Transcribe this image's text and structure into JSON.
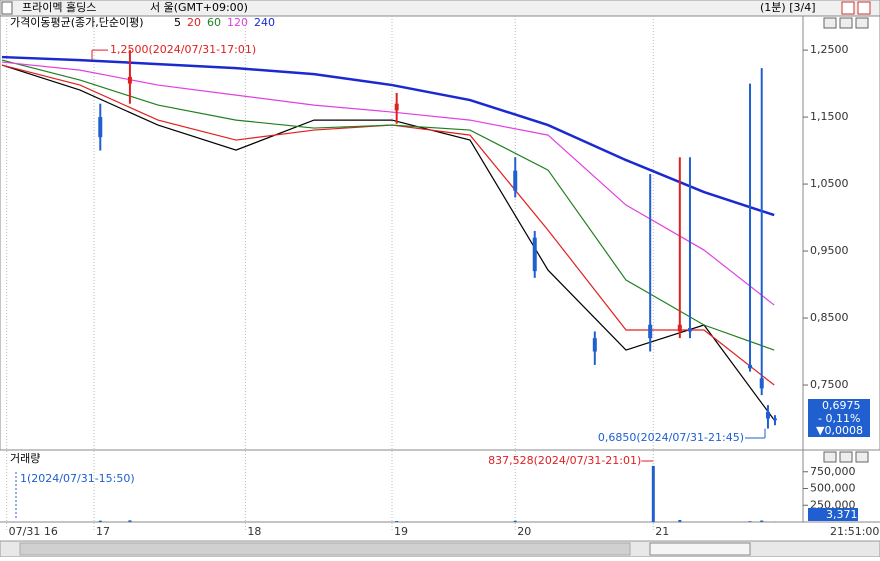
{
  "header": {
    "name": "프라이멕 홀딩스",
    "market": "서 울(GMT+09:00)",
    "interval": "(1분) [3/4]"
  },
  "chart_data": {
    "type": "candlestick",
    "indicator": "가격이동평균(종가,단순이평)",
    "xlim": [
      0,
      100
    ],
    "xticks": [
      {
        "value": 0.6,
        "label": "07/31 16"
      },
      {
        "value": 11.8,
        "label": "17"
      },
      {
        "value": 31.2,
        "label": "18"
      },
      {
        "value": 50,
        "label": "19"
      },
      {
        "value": 65.8,
        "label": "20"
      },
      {
        "value": 83.5,
        "label": "21"
      }
    ],
    "end_time": "21:51:00",
    "ylim": [
      0.653,
      1.28
    ],
    "yticks": [
      {
        "value": 1.25,
        "label": "1,2500"
      },
      {
        "value": 1.15,
        "label": "1,1500"
      },
      {
        "value": 1.05,
        "label": "1,0500"
      },
      {
        "value": 0.95,
        "label": "0,9500"
      },
      {
        "value": 0.85,
        "label": "0,8500"
      },
      {
        "value": 0.75,
        "label": "0,7500"
      }
    ],
    "up_color": "#e02020",
    "down_color": "#1f5fd0",
    "candles": {
      "x": [
        12.6,
        16.4,
        50.6,
        65.8,
        68.3,
        76,
        83.1,
        86.9,
        88.2,
        95.9,
        97.4,
        98.2,
        99.1
      ],
      "open": [
        1.15,
        1.2,
        1.16,
        1.07,
        0.97,
        0.82,
        0.84,
        0.83,
        0.835,
        0.78,
        0.76,
        0.71,
        0.7
      ],
      "high": [
        1.17,
        1.25,
        1.186,
        1.09,
        0.98,
        0.83,
        1.065,
        1.09,
        1.09,
        1.2,
        1.223,
        0.72,
        0.705
      ],
      "low": [
        1.1,
        1.17,
        1.14,
        1.03,
        0.91,
        0.78,
        0.8,
        0.82,
        0.82,
        0.77,
        0.735,
        0.685,
        0.69
      ],
      "close": [
        1.12,
        1.21,
        1.17,
        1.04,
        0.92,
        0.8,
        0.82,
        0.84,
        0.83,
        0.775,
        0.745,
        0.7,
        0.6975
      ]
    },
    "ma_x": [
      0,
      10,
      20,
      30,
      40,
      50,
      60,
      70,
      80,
      90,
      99
    ],
    "series": [
      {
        "name": "5",
        "color": "#000000",
        "values": [
          1.2276,
          1.1903,
          1.1381,
          1.1007,
          1.1455,
          1.1455,
          1.1157,
          0.9216,
          0.8022,
          0.8396,
          0.6978
        ]
      },
      {
        "name": "20",
        "color": "#e02020",
        "values": [
          1.2276,
          1.1978,
          1.1455,
          1.1157,
          1.1306,
          1.1381,
          1.1231,
          0.9813,
          0.8321,
          0.8321,
          0.75
        ]
      },
      {
        "name": "60",
        "color": "#208020",
        "values": [
          1.2351,
          1.2052,
          1.1679,
          1.1455,
          1.1336,
          1.1381,
          1.1306,
          1.0709,
          0.9067,
          0.8396,
          0.8022
        ]
      },
      {
        "name": "120",
        "color": "#e040e0",
        "values": [
          1.2321,
          1.2201,
          1.1978,
          1.1828,
          1.1679,
          1.1575,
          1.1455,
          1.1231,
          1.0187,
          0.9515,
          0.8694
        ]
      },
      {
        "name": "240",
        "color": "#1a2ad0",
        "values": [
          1.2396,
          1.2351,
          1.2291,
          1.2231,
          1.2142,
          1.1978,
          1.1754,
          1.1381,
          1.0858,
          1.0381,
          1.0037
        ]
      }
    ],
    "high_note": "1,2500(2024/07/31-17:01)",
    "low_note": "0,6850(2024/07/31-21:45)",
    "last_price": "0,6975",
    "change_pct": "- 0,11%",
    "change": "▼0,0008",
    "volume": {
      "title": "거래량",
      "ylim": [
        0,
        1000000
      ],
      "yticks": [
        {
          "value": 750000,
          "label": "750,000"
        },
        {
          "value": 500000,
          "label": "500,000"
        },
        {
          "value": 250000,
          "label": "250,000"
        }
      ],
      "x": [
        12.6,
        16.4,
        50.6,
        65.8,
        83.5,
        86.9,
        95.9,
        97.4,
        99.1
      ],
      "values": [
        20000,
        25000,
        15000,
        18000,
        837528,
        30000,
        12000,
        22000,
        3371
      ],
      "color": "#1f5fd0",
      "max_note": "837,528(2024/07/31-21:01)",
      "min_note": "1(2024/07/31-15:50)",
      "last": "3,371"
    }
  }
}
